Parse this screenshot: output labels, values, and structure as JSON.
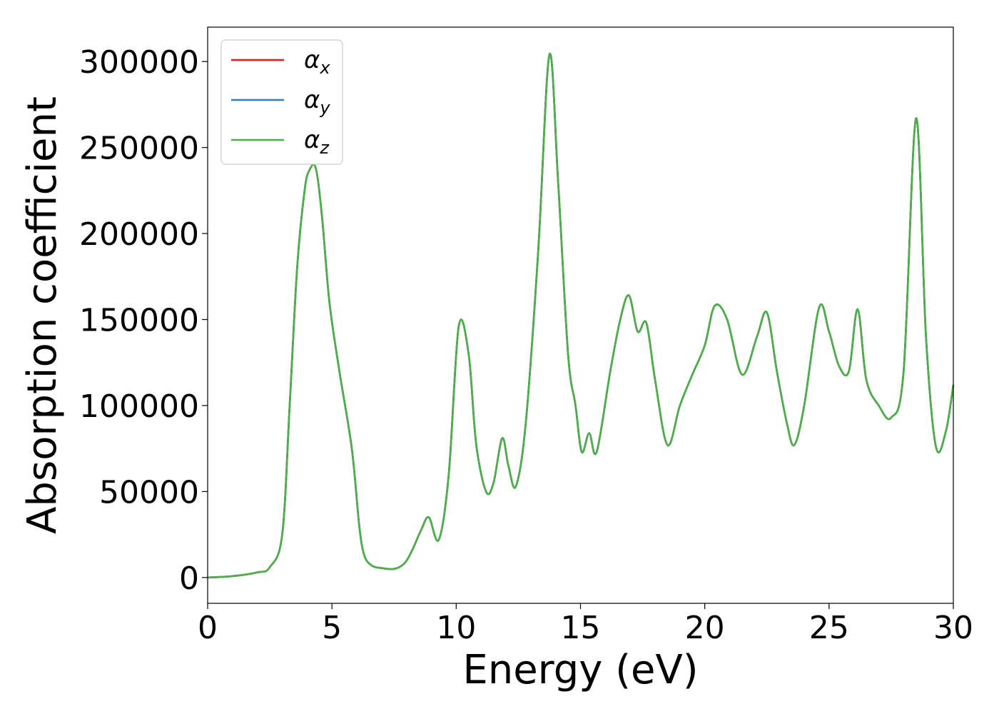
{
  "chart_data": {
    "type": "line",
    "title": "",
    "xlabel": "Energy (eV)",
    "ylabel": "Absorption coefficient",
    "xlim": [
      0,
      30
    ],
    "ylim": [
      -15000,
      320000
    ],
    "xticks": [
      0,
      5,
      10,
      15,
      20,
      25,
      30
    ],
    "yticks": [
      0,
      50000,
      100000,
      150000,
      200000,
      250000,
      300000
    ],
    "grid": false,
    "legend_position": "top-left",
    "series": [
      {
        "name": "α_x",
        "label_base": "α",
        "label_sub": "x",
        "color": "#e41a1c",
        "x": [
          0,
          1,
          2,
          2.5,
          3,
          3.3,
          3.6,
          3.9,
          4.1,
          4.35,
          4.6,
          4.9,
          5.3,
          5.8,
          6.1,
          6.3,
          6.6,
          7,
          7.5,
          7.9,
          8.2,
          8.6,
          8.9,
          9.3,
          9.7,
          10.1,
          10.5,
          10.8,
          11.2,
          11.5,
          11.85,
          12.1,
          12.4,
          12.8,
          13.3,
          13.75,
          14.1,
          14.5,
          14.8,
          15.05,
          15.35,
          15.65,
          16.2,
          16.6,
          16.95,
          17.3,
          17.65,
          18,
          18.5,
          19,
          19.5,
          20,
          20.4,
          20.9,
          21.5,
          22.1,
          22.5,
          22.9,
          23.3,
          23.6,
          24,
          24.6,
          25,
          25.4,
          25.8,
          26.15,
          26.5,
          27,
          27.5,
          28,
          28.5,
          28.9,
          29.3,
          29.7,
          30
        ],
        "values": [
          0,
          800,
          3000,
          6000,
          25000,
          100000,
          180000,
          225000,
          237000,
          238000,
          210000,
          160000,
          120000,
          75000,
          30000,
          13000,
          7000,
          5500,
          5000,
          8000,
          15000,
          28000,
          35000,
          22000,
          60000,
          146000,
          130000,
          78000,
          50000,
          55000,
          81000,
          65000,
          53000,
          90000,
          190000,
          304000,
          230000,
          130000,
          100000,
          73000,
          84000,
          73000,
          120000,
          150000,
          164000,
          143000,
          148000,
          115000,
          77000,
          100000,
          118000,
          135000,
          158000,
          150000,
          118000,
          140000,
          154000,
          120000,
          90000,
          77000,
          100000,
          157000,
          143000,
          123000,
          120000,
          156000,
          115000,
          100000,
          93000,
          120000,
          267000,
          140000,
          76000,
          85000,
          112000
        ]
      },
      {
        "name": "α_y",
        "label_base": "α",
        "label_sub": "y",
        "color": "#377eb8",
        "x": [
          0,
          1,
          2,
          2.5,
          3,
          3.3,
          3.6,
          3.9,
          4.1,
          4.35,
          4.6,
          4.9,
          5.3,
          5.8,
          6.1,
          6.3,
          6.6,
          7,
          7.5,
          7.9,
          8.2,
          8.6,
          8.9,
          9.3,
          9.7,
          10.1,
          10.5,
          10.8,
          11.2,
          11.5,
          11.85,
          12.1,
          12.4,
          12.8,
          13.3,
          13.75,
          14.1,
          14.5,
          14.8,
          15.05,
          15.35,
          15.65,
          16.2,
          16.6,
          16.95,
          17.3,
          17.65,
          18,
          18.5,
          19,
          19.5,
          20,
          20.4,
          20.9,
          21.5,
          22.1,
          22.5,
          22.9,
          23.3,
          23.6,
          24,
          24.6,
          25,
          25.4,
          25.8,
          26.15,
          26.5,
          27,
          27.5,
          28,
          28.5,
          28.9,
          29.3,
          29.7,
          30
        ],
        "values": [
          0,
          800,
          3000,
          6000,
          25000,
          100000,
          180000,
          225000,
          237000,
          238000,
          210000,
          160000,
          120000,
          75000,
          30000,
          13000,
          7000,
          5500,
          5000,
          8000,
          15000,
          28000,
          35000,
          22000,
          60000,
          146000,
          130000,
          78000,
          50000,
          55000,
          81000,
          65000,
          53000,
          90000,
          190000,
          304000,
          230000,
          130000,
          100000,
          73000,
          84000,
          73000,
          120000,
          150000,
          164000,
          143000,
          148000,
          115000,
          77000,
          100000,
          118000,
          135000,
          158000,
          150000,
          118000,
          140000,
          154000,
          120000,
          90000,
          77000,
          100000,
          157000,
          143000,
          123000,
          120000,
          156000,
          115000,
          100000,
          93000,
          120000,
          267000,
          140000,
          76000,
          85000,
          112000
        ]
      },
      {
        "name": "α_z",
        "label_base": "α",
        "label_sub": "z",
        "color": "#4daf4a",
        "x": [
          0,
          1,
          2,
          2.5,
          3,
          3.3,
          3.6,
          3.9,
          4.1,
          4.35,
          4.6,
          4.9,
          5.3,
          5.8,
          6.1,
          6.3,
          6.6,
          7,
          7.5,
          7.9,
          8.2,
          8.6,
          8.9,
          9.3,
          9.7,
          10.1,
          10.5,
          10.8,
          11.2,
          11.5,
          11.85,
          12.1,
          12.4,
          12.8,
          13.3,
          13.75,
          14.1,
          14.5,
          14.8,
          15.05,
          15.35,
          15.65,
          16.2,
          16.6,
          16.95,
          17.3,
          17.65,
          18,
          18.5,
          19,
          19.5,
          20,
          20.4,
          20.9,
          21.5,
          22.1,
          22.5,
          22.9,
          23.3,
          23.6,
          24,
          24.6,
          25,
          25.4,
          25.8,
          26.15,
          26.5,
          27,
          27.5,
          28,
          28.5,
          28.9,
          29.3,
          29.7,
          30
        ],
        "values": [
          0,
          800,
          3000,
          6000,
          25000,
          100000,
          180000,
          225000,
          237000,
          238000,
          210000,
          160000,
          120000,
          75000,
          30000,
          13000,
          7000,
          5500,
          5000,
          8000,
          15000,
          28000,
          35000,
          22000,
          60000,
          146000,
          130000,
          78000,
          50000,
          55000,
          81000,
          65000,
          53000,
          90000,
          190000,
          304000,
          230000,
          130000,
          100000,
          73000,
          84000,
          73000,
          120000,
          150000,
          164000,
          143000,
          148000,
          115000,
          77000,
          100000,
          118000,
          135000,
          158000,
          150000,
          118000,
          140000,
          154000,
          120000,
          90000,
          77000,
          100000,
          157000,
          143000,
          123000,
          120000,
          156000,
          115000,
          100000,
          93000,
          120000,
          267000,
          140000,
          76000,
          85000,
          112000
        ]
      }
    ]
  }
}
